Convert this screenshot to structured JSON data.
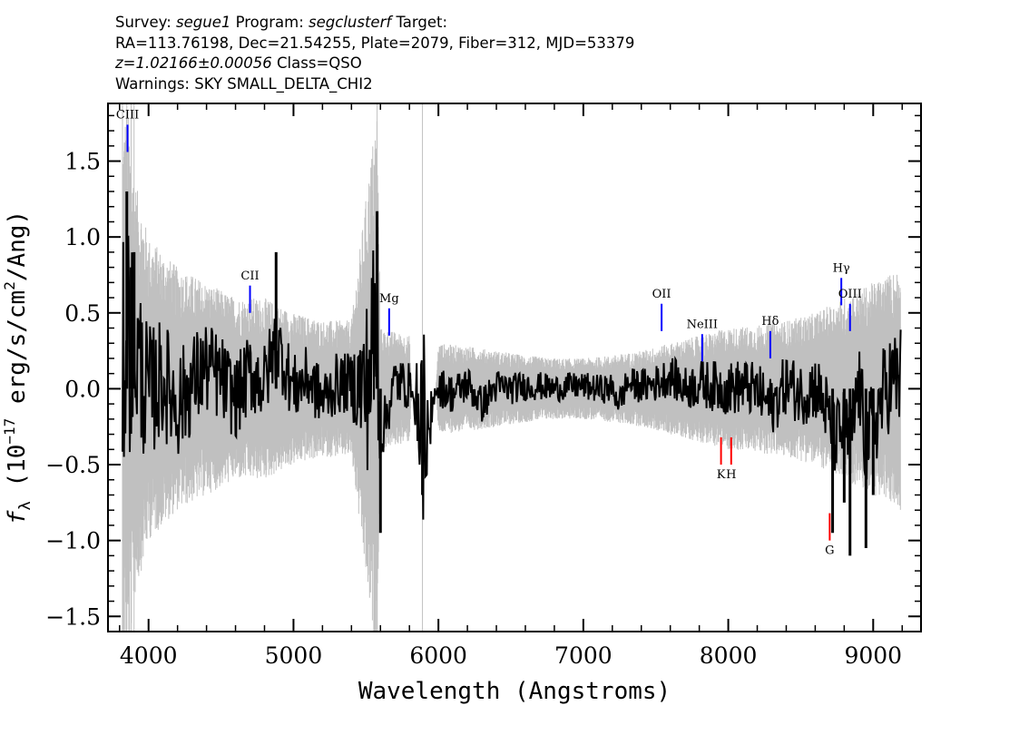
{
  "header": {
    "survey_label": "Survey:",
    "survey": "segue1",
    "program_label": "Program:",
    "program": "segclusterf",
    "target_label": "Target:",
    "line2": "RA=113.76198, Dec=21.54255, Plate=2079, Fiber=312, MJD=53379",
    "redshift": "z=1.02166±0.00056",
    "class_text": "Class=QSO",
    "warnings": "Warnings: SKY SMALL_DELTA_CHI2"
  },
  "chart_data": {
    "type": "line",
    "xlabel": "Wavelength (Angstroms)",
    "ylabel": "f_λ (10^-17 erg/s/cm^2/Ang)",
    "xlim": [
      3720,
      9330
    ],
    "ylim": [
      -1.6,
      1.88
    ],
    "xticks": [
      4000,
      5000,
      6000,
      7000,
      8000,
      9000
    ],
    "yticks": [
      -1.5,
      -1.0,
      -0.5,
      0.0,
      0.5,
      1.0,
      1.5
    ],
    "series": [
      {
        "color": "#000000",
        "x": [
          3820,
          3850,
          3880,
          3900,
          3950,
          4000,
          4100,
          4200,
          4300,
          4400,
          4500,
          4600,
          4700,
          4800,
          4880,
          5000,
          5100,
          5200,
          5300,
          5400,
          5500,
          5577,
          5600,
          5700,
          5800,
          5890,
          6000,
          6100,
          6200,
          6300,
          6400,
          6500,
          6600,
          6700,
          6800,
          6900,
          7000,
          7100,
          7200,
          7250,
          7300,
          7400,
          7500,
          7600,
          7700,
          7800,
          7900,
          8000,
          8100,
          8200,
          8300,
          8400,
          8500,
          8600,
          8680,
          8720,
          8800,
          8840,
          8900,
          8950,
          9000,
          9100,
          9190
        ],
        "y": [
          0.4,
          1.3,
          0.8,
          0.9,
          0.3,
          -0.1,
          0.2,
          -0.3,
          0.1,
          0.4,
          0.2,
          -0.2,
          0.3,
          0.1,
          0.9,
          0.0,
          0.2,
          -0.2,
          0.1,
          0.1,
          0.0,
          1.17,
          -0.95,
          0.15,
          0.05,
          -0.7,
          0.05,
          -0.1,
          0.1,
          -0.3,
          0.05,
          0.0,
          0.05,
          0.05,
          0.0,
          0.05,
          0.05,
          0.0,
          0.0,
          -0.25,
          0.1,
          0.05,
          0.1,
          0.25,
          0.0,
          0.1,
          0.05,
          0.0,
          0.05,
          -0.05,
          -0.35,
          0.1,
          -0.1,
          0.05,
          -0.4,
          -0.95,
          -0.75,
          -1.1,
          0.1,
          -1.05,
          -0.7,
          0.1,
          0.2
        ]
      },
      {
        "color": "#c0c0c0",
        "x": [
          3820,
          3850,
          3880,
          3900,
          4000,
          4200,
          4400,
          4600,
          4800,
          5000,
          5200,
          5400,
          5577,
          5600,
          5800,
          5890,
          6000,
          6200,
          6400,
          6600,
          6800,
          7000,
          7200,
          7400,
          7600,
          7800,
          8000,
          8200,
          8400,
          8600,
          8700,
          8800,
          8900,
          9000,
          9100,
          9190
        ],
        "y": [
          1.7,
          1.9,
          1.6,
          1.4,
          1.0,
          0.8,
          0.7,
          0.6,
          0.6,
          0.5,
          0.45,
          0.45,
          1.88,
          0.4,
          0.35,
          -1.5,
          0.3,
          0.28,
          0.25,
          0.22,
          0.2,
          0.2,
          0.22,
          0.25,
          0.3,
          0.35,
          0.4,
          0.42,
          0.45,
          0.5,
          0.55,
          0.6,
          0.65,
          0.7,
          0.75,
          0.8
        ]
      }
    ],
    "emission_lines": [
      {
        "label": "CIII",
        "x": 3855,
        "color": "#0000ff"
      },
      {
        "label": "CII",
        "x": 4700,
        "color": "#0000ff"
      },
      {
        "label": "Mg",
        "x": 5660,
        "color": "#0000ff"
      },
      {
        "label": "OII",
        "x": 7540,
        "color": "#0000ff"
      },
      {
        "label": "NeIII",
        "x": 7820,
        "color": "#0000ff"
      },
      {
        "label": "Hδ",
        "x": 8290,
        "color": "#0000ff"
      },
      {
        "label": "Hγ",
        "x": 8780,
        "color": "#0000ff"
      },
      {
        "label": "OIII",
        "x": 8840,
        "color": "#0000ff"
      }
    ],
    "absorption_lines": [
      {
        "label": "K",
        "x": 7950,
        "color": "#ff0000"
      },
      {
        "label": "H",
        "x": 8020,
        "color": "#ff0000"
      },
      {
        "label": "G",
        "x": 8700,
        "color": "#ff0000"
      }
    ]
  }
}
